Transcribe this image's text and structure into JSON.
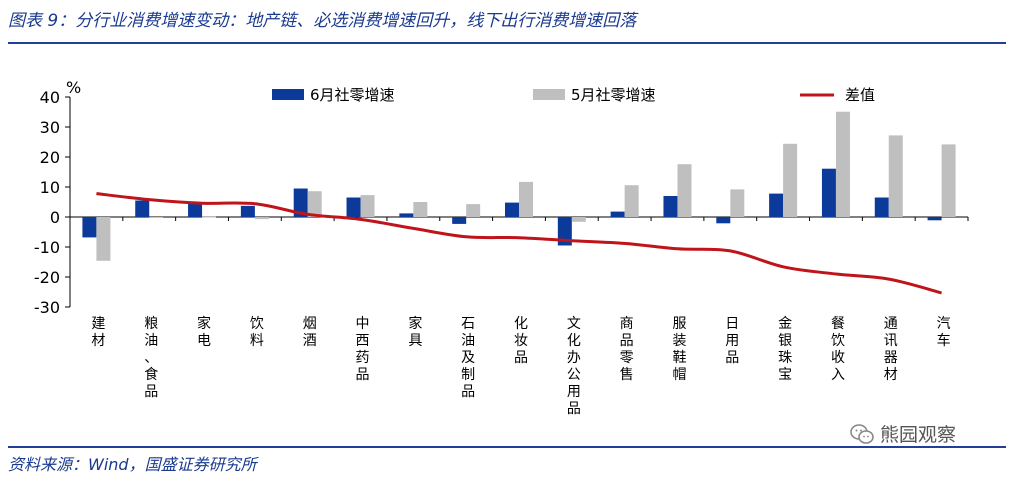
{
  "header": {
    "title": "图表 9：分行业消费增速变动：地产链、必选消费增速回升，线下出行消费增速回落"
  },
  "footer": {
    "source": "资料来源：Wind，国盛证券研究所",
    "watermark": "熊园观察"
  },
  "colors": {
    "jun": "#0b3a9a",
    "may": "#bfbfbf",
    "diff": "#c0141b",
    "brand": "#1f3f99"
  },
  "chart_data": {
    "type": "bar",
    "unit_label": "%",
    "ylim": [
      -30,
      40
    ],
    "yticks": [
      40,
      30,
      20,
      10,
      0,
      -10,
      -20,
      -30
    ],
    "categories": [
      "建材",
      "粮油、食品",
      "家电",
      "饮料",
      "烟酒",
      "中西药品",
      "家具",
      "石油及制品",
      "化妆品",
      "文化办公用品",
      "商品零售",
      "服装鞋帽",
      "日用品",
      "金银珠宝",
      "餐饮收入",
      "通讯器材",
      "汽车"
    ],
    "series": [
      {
        "name": "6月社零增速",
        "kind": "bar",
        "values": [
          -6.8,
          5.5,
          4.7,
          3.7,
          9.5,
          6.5,
          1.2,
          -2.3,
          4.8,
          -9.5,
          1.8,
          7.0,
          -2.1,
          7.8,
          16.1,
          6.5,
          -1.1
        ]
      },
      {
        "name": "5月社零增速",
        "kind": "bar",
        "values": [
          -14.6,
          -0.3,
          0.1,
          -0.7,
          8.6,
          7.3,
          5.0,
          4.3,
          11.7,
          -1.6,
          10.6,
          17.6,
          9.2,
          24.4,
          35.1,
          27.2,
          24.2
        ]
      },
      {
        "name": "差值",
        "kind": "line",
        "values": [
          7.8,
          5.8,
          4.6,
          4.4,
          0.9,
          -0.8,
          -3.8,
          -6.6,
          -6.9,
          -7.9,
          -8.8,
          -10.6,
          -11.3,
          -16.6,
          -19.0,
          -20.7,
          -25.3
        ]
      }
    ]
  }
}
